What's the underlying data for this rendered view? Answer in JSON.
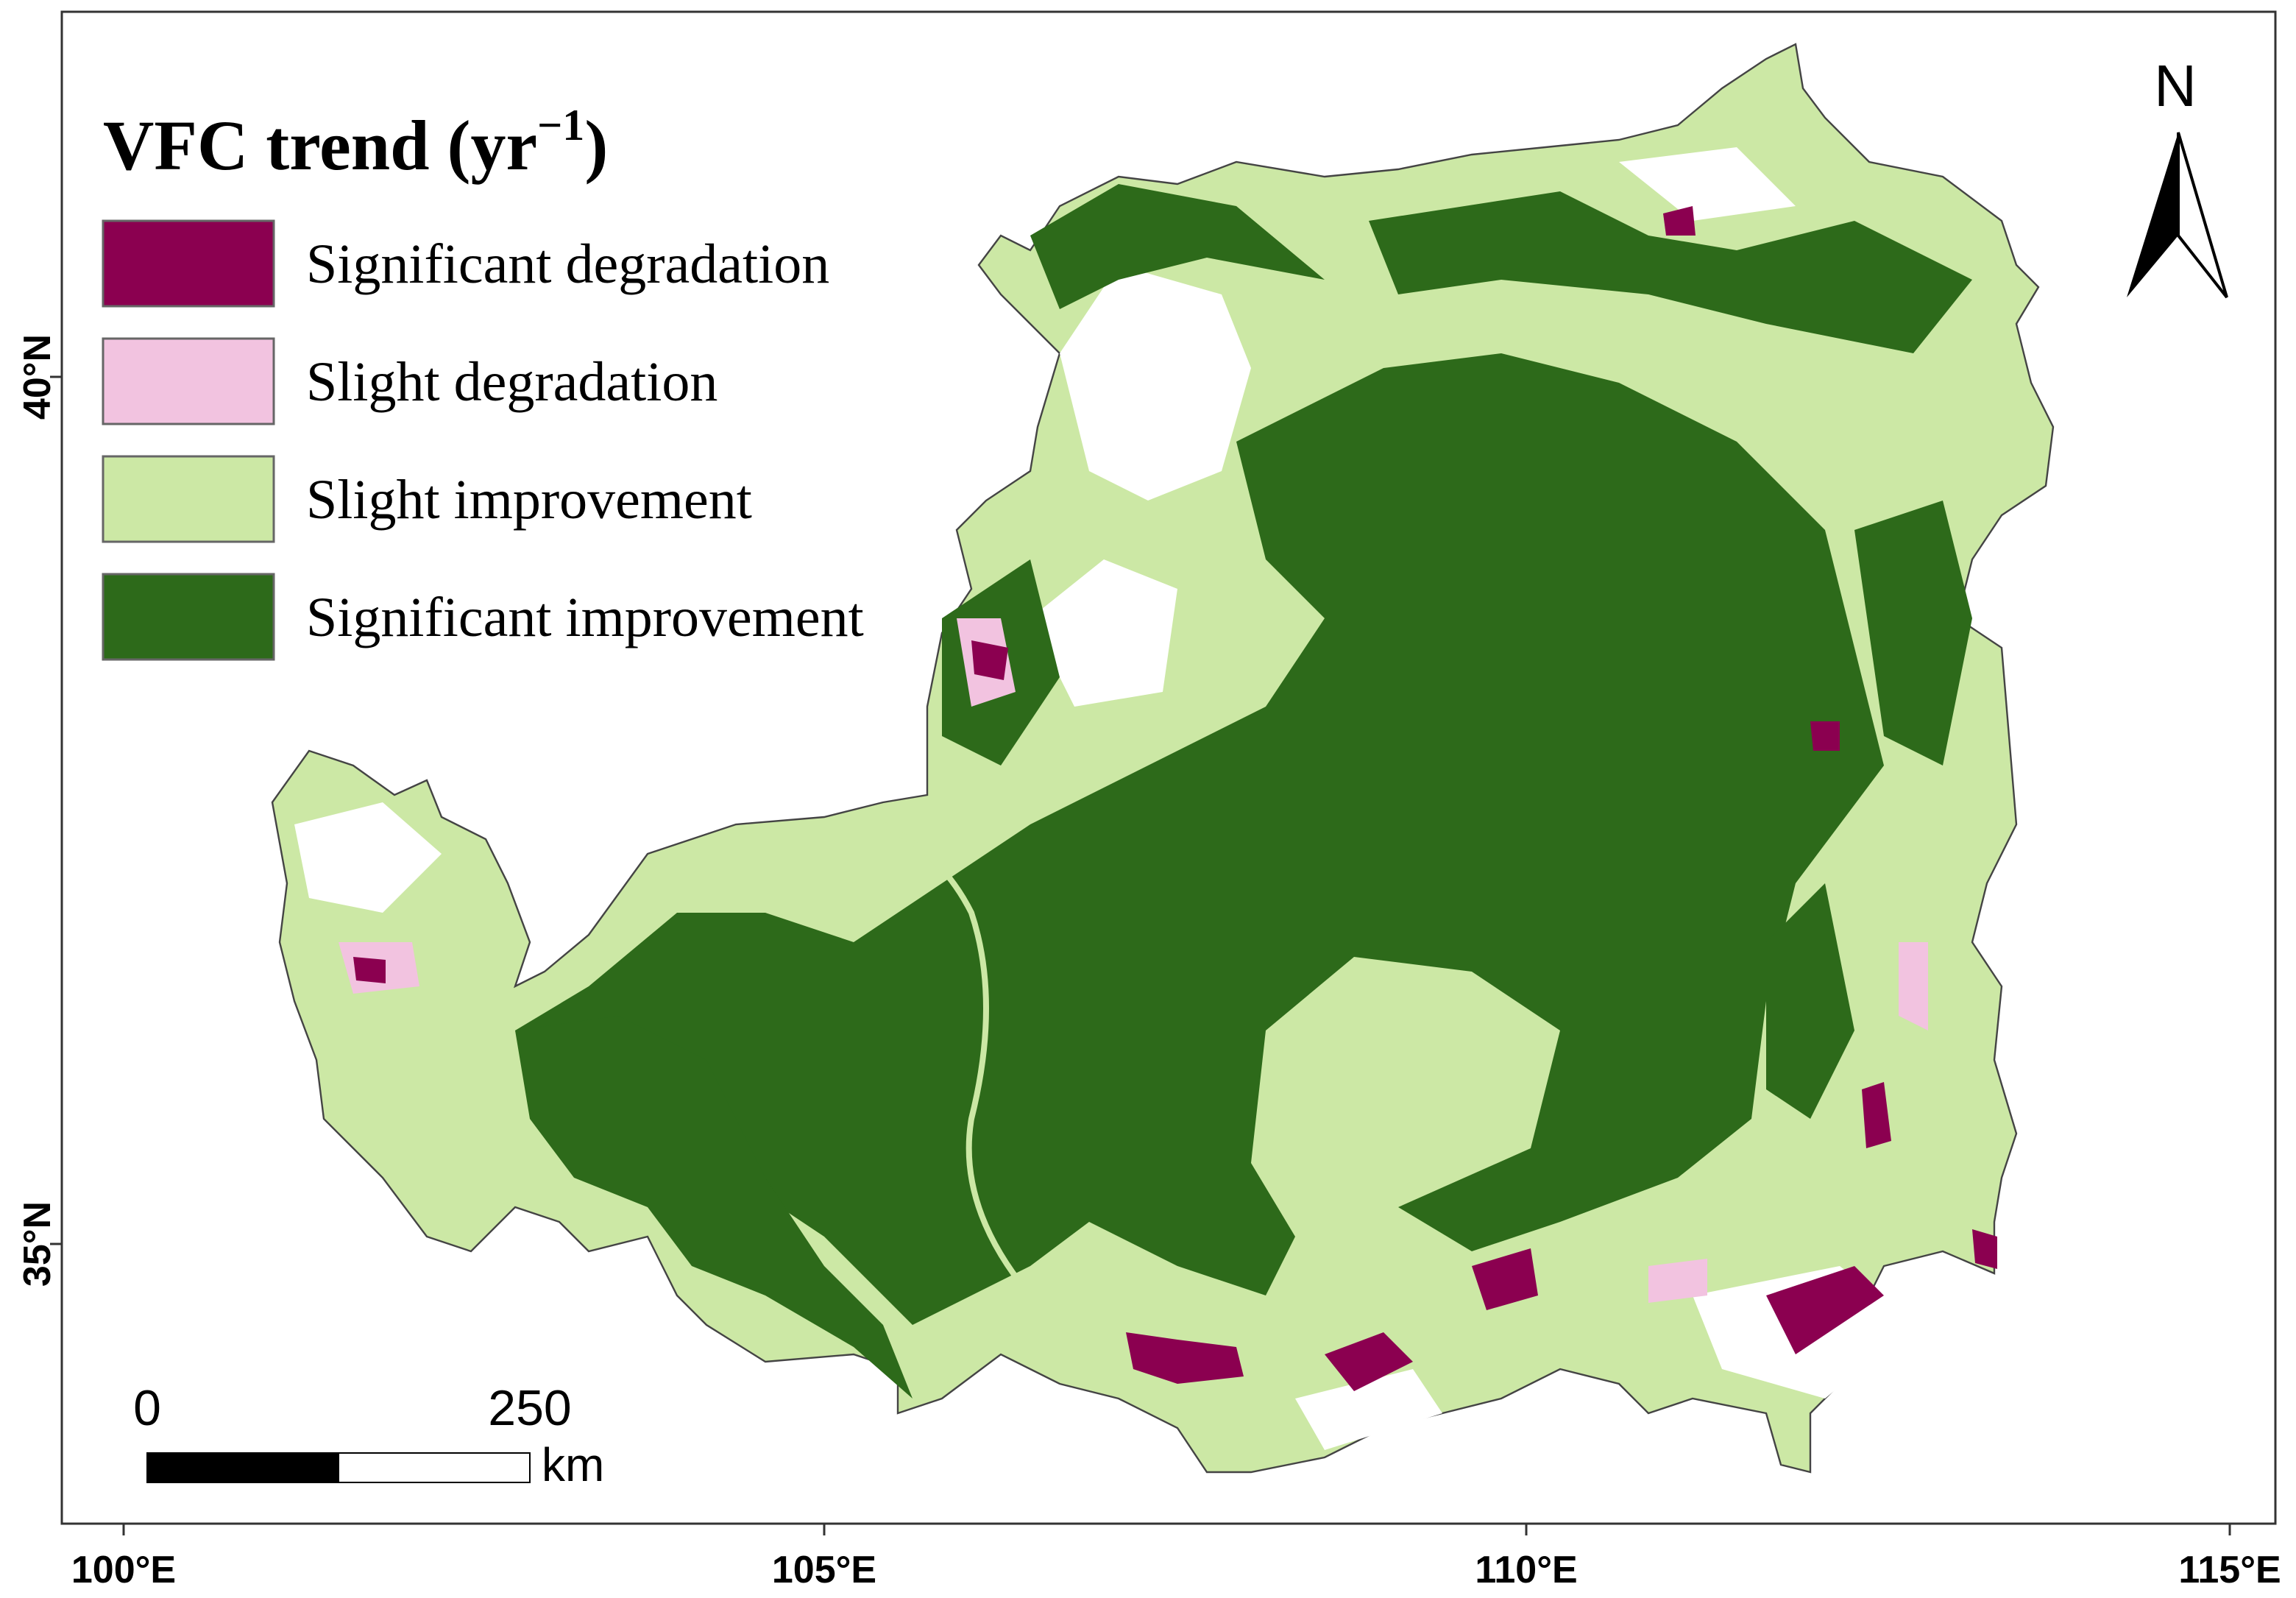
{
  "map": {
    "title": {
      "text": "VFC trend (yr",
      "superscript": "−1",
      "suffix": ")"
    },
    "legend": [
      {
        "label": "Significant degradation",
        "color": "#8b0050"
      },
      {
        "label": "Slight degradation",
        "color": "#f2c3e0"
      },
      {
        "label": "Slight improvement",
        "color": "#cce8a5"
      },
      {
        "label": "Significant improvement",
        "color": "#2d6a1a"
      }
    ],
    "x_labels": [
      "100°E",
      "105°E",
      "110°E",
      "115°E"
    ],
    "y_labels": [
      "40°N",
      "35°N"
    ],
    "scale_bar": {
      "start": "0",
      "end": "250",
      "unit": "km"
    },
    "north": "N"
  }
}
